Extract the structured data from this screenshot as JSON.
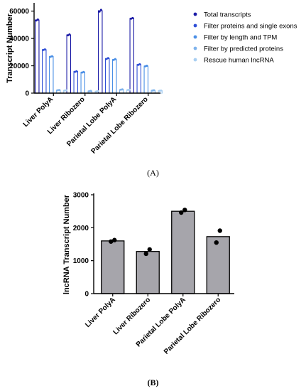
{
  "chart_data": [
    {
      "panel": "(A)",
      "type": "bar",
      "ylabel": "Transcript Number",
      "ylim": [
        0,
        65000
      ],
      "yticks": [
        0,
        20000,
        40000,
        60000
      ],
      "categories": [
        "Liver PolyA",
        "Liver Ribozero",
        "Parietal Lobe PolyA",
        "Parietal Lobe Ribozero"
      ],
      "legend_position": "right",
      "series": [
        {
          "name": "Total transcripts",
          "color": "#1a1aa6",
          "values": [
            53500,
            42600,
            60300,
            54700
          ],
          "points": [
            [
              53200,
              53800
            ],
            [
              42300,
              42900
            ],
            [
              59700,
              60900
            ],
            [
              54500,
              54900
            ]
          ]
        },
        {
          "name": "Filter proteins and single exons",
          "color": "#2f4fd6",
          "values": [
            31800,
            15800,
            25300,
            20900
          ],
          "points": [
            [
              31600,
              32000
            ],
            [
              15600,
              16000
            ],
            [
              25000,
              25600
            ],
            [
              20700,
              21100
            ]
          ]
        },
        {
          "name": "Filter by length and TPM",
          "color": "#4a8fe6",
          "values": [
            26800,
            15300,
            24600,
            19800
          ],
          "points": [
            [
              26600,
              27000
            ],
            [
              15100,
              15500
            ],
            [
              24300,
              24900
            ],
            [
              19600,
              20000
            ]
          ]
        },
        {
          "name": "Filter by predicted proteins",
          "color": "#7fb3ec",
          "values": [
            2200,
            1500,
            2600,
            2000
          ],
          "points": [
            [
              2100,
              2300
            ],
            [
              1400,
              1600
            ],
            [
              2500,
              2700
            ],
            [
              1900,
              2100
            ]
          ]
        },
        {
          "name": "Rescue human lncRNA",
          "color": "#a9cff2",
          "values": [
            2000,
            1300,
            2400,
            1800
          ],
          "points": [
            [
              1900,
              2100
            ],
            [
              1200,
              1400
            ],
            [
              2300,
              2500
            ],
            [
              1700,
              1900
            ]
          ]
        }
      ]
    },
    {
      "panel": "(B)",
      "type": "bar",
      "ylabel": "lncRNA Transcript Number",
      "ylim": [
        0,
        3000
      ],
      "yticks": [
        0,
        1000,
        2000,
        3000
      ],
      "categories": [
        "Liver PolyA",
        "Liver Ribozero",
        "Parietal Lobe PolyA",
        "Parietal Lobe Ribozero"
      ],
      "bar_color": "#a6a5ab",
      "values": [
        1600,
        1280,
        2500,
        1730
      ],
      "points": [
        [
          1580,
          1625
        ],
        [
          1210,
          1340
        ],
        [
          2460,
          2540
        ],
        [
          1550,
          1910
        ]
      ]
    }
  ]
}
